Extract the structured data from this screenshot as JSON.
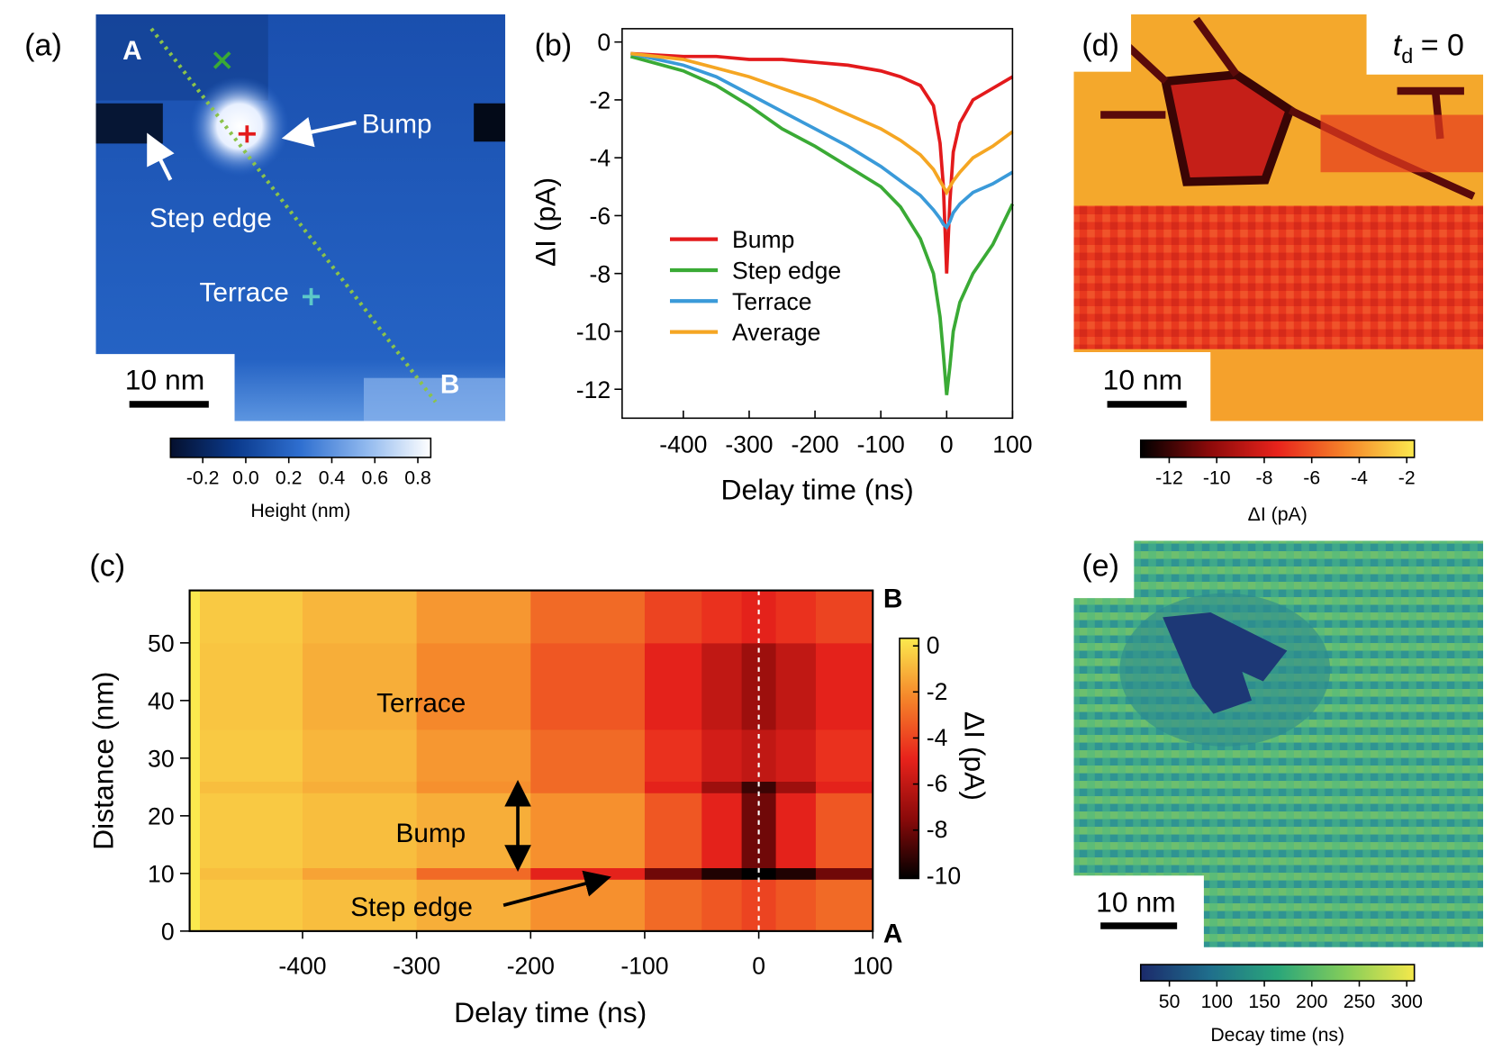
{
  "figure": {
    "panel_a": {
      "label": "(a)",
      "annotations": {
        "a": "A",
        "b": "B",
        "bump": "Bump",
        "step": "Step edge",
        "terrace": "Terrace"
      },
      "scale_bar": "10 nm",
      "colorbar": {
        "label": "Height (nm)",
        "lim": [
          -0.35,
          0.86
        ],
        "ticks": [
          -0.2,
          {
            "value": 0,
            "label": "0.0"
          },
          0.2,
          0.4,
          0.6,
          0.8
        ],
        "colors": [
          "#05102e",
          "#0b3a8c",
          "#2f6fd0",
          "#8fb8ee",
          "#ffffff"
        ]
      }
    },
    "panel_d": {
      "label": "(d)",
      "title": {
        "var": "t",
        "sub": "d",
        "rest": "= 0"
      },
      "scale_bar": "10 nm",
      "colorbar": {
        "label": "ΔI (pA)",
        "lim": [
          -13.2,
          -1.68
        ],
        "ticks": [
          -12,
          -10,
          -8,
          -6,
          -4,
          -2
        ],
        "colors": [
          "#000000",
          "#8b0a0a",
          "#e8231c",
          "#f5852a",
          "#fbe94e"
        ]
      }
    },
    "panel_e": {
      "label": "(e)",
      "scale_bar": "10 nm",
      "colorbar": {
        "label": "Decay time (ns)",
        "lim": [
          19.8,
          308
        ],
        "ticks": [
          50,
          100,
          150,
          200,
          250,
          300
        ],
        "colors": [
          "#1b2a6b",
          "#1f6e8c",
          "#2aa67a",
          "#84cd5a",
          "#f4e84b"
        ]
      }
    }
  },
  "chart_data": [
    {
      "type": "line",
      "panel": "(b)",
      "x_label": "Delay time (ns)",
      "y_label": "ΔI (pA)",
      "xlim": [
        -493,
        100
      ],
      "ylim": [
        -13,
        0.46
      ],
      "xticks": [
        -400,
        -300,
        -200,
        -100,
        0,
        100
      ],
      "yticks": [
        0,
        -2,
        -4,
        -6,
        -8,
        -10,
        -12
      ],
      "x": [
        -480,
        -400,
        -350,
        -300,
        -250,
        -200,
        -150,
        -100,
        -70,
        -40,
        -20,
        -10,
        -5,
        0,
        5,
        10,
        20,
        40,
        70,
        100
      ],
      "series": [
        {
          "name": "Bump",
          "color": "#e31a1c",
          "values": [
            -0.4,
            -0.5,
            -0.5,
            -0.6,
            -0.6,
            -0.7,
            -0.8,
            -1.0,
            -1.2,
            -1.5,
            -2.2,
            -3.5,
            -5,
            -8,
            -5.5,
            -3.8,
            -2.8,
            -2,
            -1.6,
            -1.2
          ]
        },
        {
          "name": "Step edge",
          "color": "#3aaa35",
          "values": [
            -0.5,
            -1.0,
            -1.5,
            -2.2,
            -3,
            -3.6,
            -4.3,
            -5,
            -5.7,
            -6.8,
            -8,
            -9.5,
            -10.8,
            -12.2,
            -11.2,
            -10,
            -9,
            -8,
            -7,
            -5.6
          ]
        },
        {
          "name": "Terrace",
          "color": "#3a9ad9",
          "values": [
            -0.4,
            -0.8,
            -1.2,
            -1.8,
            -2.4,
            -3,
            -3.6,
            -4.3,
            -4.8,
            -5.3,
            -5.8,
            -6.1,
            -6.3,
            -6.4,
            -6.2,
            -5.9,
            -5.6,
            -5.2,
            -4.9,
            -4.5
          ]
        },
        {
          "name": "Average",
          "color": "#f5a623",
          "values": [
            -0.4,
            -0.6,
            -0.9,
            -1.2,
            -1.6,
            -2.0,
            -2.5,
            -3.0,
            -3.4,
            -3.9,
            -4.4,
            -4.8,
            -5.0,
            -5.2,
            -5.0,
            -4.8,
            -4.5,
            -4.0,
            -3.6,
            -3.1
          ]
        }
      ]
    },
    {
      "type": "heatmap",
      "panel": "(c)",
      "x_label": "Delay time (ns)",
      "y_label": "Distance (nm)",
      "xlim": [
        -499,
        100
      ],
      "ylim": [
        0,
        59.1
      ],
      "xticks": [
        -400,
        -300,
        -200,
        -100,
        0,
        100
      ],
      "yticks": [
        0,
        10,
        20,
        30,
        40,
        50
      ],
      "xbins": [
        -490,
        -400,
        -300,
        -200,
        -100,
        -50,
        -15,
        15,
        50,
        100
      ],
      "ybins": [
        0,
        9,
        11,
        24,
        26,
        35,
        50,
        59
      ],
      "values": [
        [
          -0.5,
          -0.8,
          -1.2,
          -2,
          -3,
          -3.5,
          -4,
          -3.5,
          -3
        ],
        [
          -0.8,
          -1.5,
          -3,
          -5,
          -8,
          -9.5,
          -10.5,
          -9.5,
          -8
        ],
        [
          -0.5,
          -0.8,
          -1.2,
          -2,
          -3.5,
          -5,
          -8,
          -5,
          -3.5
        ],
        [
          -0.8,
          -1.2,
          -2,
          -3,
          -5,
          -7,
          -9,
          -7,
          -5
        ],
        [
          -0.5,
          -1,
          -1.8,
          -3,
          -4.5,
          -5.5,
          -6,
          -5.5,
          -4.5
        ],
        [
          -0.6,
          -1.2,
          -2.2,
          -3.5,
          -5,
          -6,
          -7,
          -6,
          -5
        ],
        [
          -0.5,
          -1,
          -1.8,
          -3,
          -4,
          -4.5,
          -5,
          -4.5,
          -4
        ]
      ],
      "vline": 0,
      "annotations": {
        "terrace": "Terrace",
        "bump": "Bump",
        "step": "Step edge",
        "bottom": "A",
        "top": "B"
      },
      "colorbar": {
        "label": "ΔI (pA)",
        "lim": [
          -10.1,
          0.33
        ],
        "ticks": [
          0,
          -2,
          -4,
          -6,
          -8,
          -10
        ],
        "colors": [
          "#000000",
          "#8b0a0a",
          "#e8231c",
          "#f5852a",
          "#fbe94e"
        ]
      }
    }
  ]
}
